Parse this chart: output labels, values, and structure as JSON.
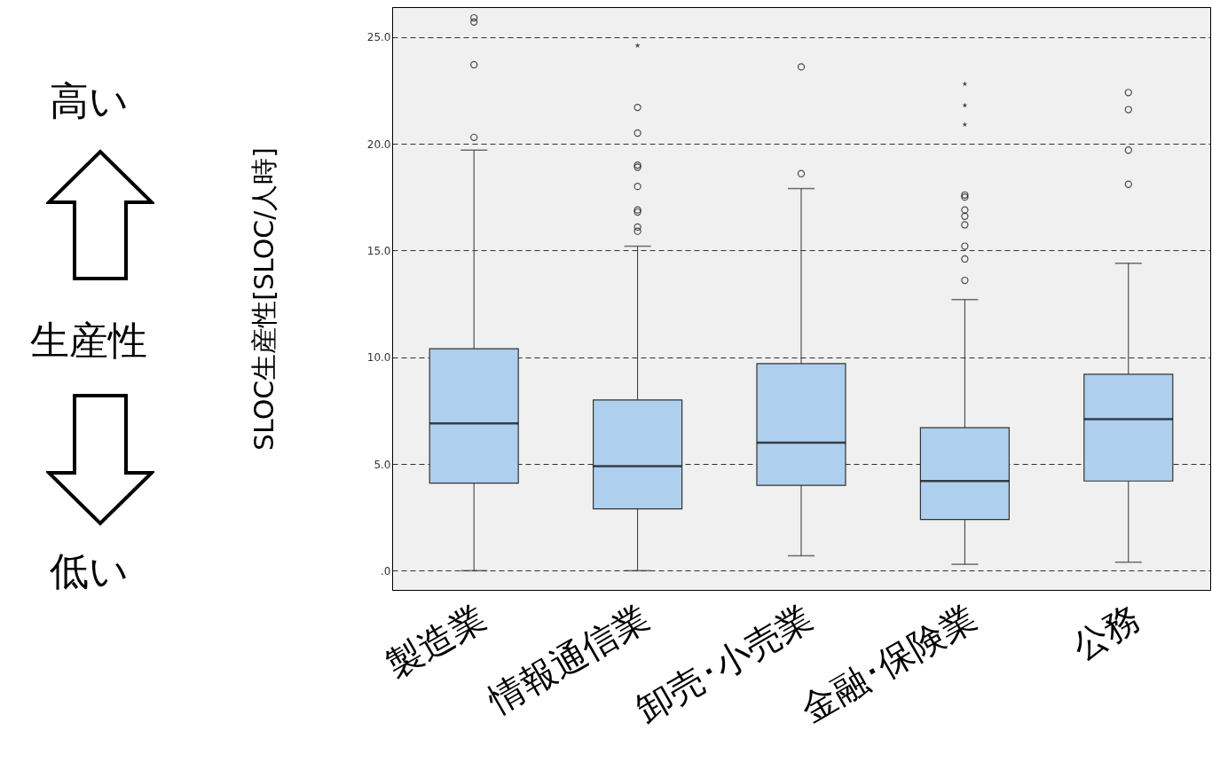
{
  "chart_data": {
    "type": "box",
    "ylabel": "SLOC生産性[SLOC/人時]",
    "categories": [
      "製造業",
      "情報通信業",
      "卸売･小売業",
      "金融･保険業",
      "公務"
    ],
    "color": "#aecfee",
    "boxes": [
      {
        "low": 0,
        "q1": 4.1,
        "median": 6.9,
        "q3": 10.4,
        "high": 19.7,
        "outliers": [
          20.3,
          23.7,
          25.7,
          25.9
        ]
      },
      {
        "low": 0,
        "q1": 2.9,
        "median": 4.9,
        "q3": 8.0,
        "high": 15.2,
        "outliers": [
          15.9,
          16.1,
          16.8,
          16.9,
          18.0,
          18.9,
          19.0,
          20.5,
          21.7
        ]
      },
      {
        "low": 0.7,
        "q1": 4.0,
        "median": 6.0,
        "q3": 9.7,
        "high": 17.9,
        "outliers": [
          18.6,
          23.6
        ]
      },
      {
        "low": 0.3,
        "q1": 2.4,
        "median": 4.2,
        "q3": 6.7,
        "high": 12.7,
        "outliers": [
          13.6,
          14.6,
          15.2,
          16.2,
          16.6,
          16.9,
          17.5,
          17.6
        ]
      },
      {
        "low": 0.4,
        "q1": 4.2,
        "median": 7.1,
        "q3": 9.2,
        "high": 14.4,
        "outliers": [
          18.1,
          19.7,
          21.6,
          22.4
        ]
      }
    ],
    "series": [
      {
        "type": "scatter",
        "marker": "star",
        "color": "#000000",
        "x": [
          "情報通信業",
          "金融･保険業",
          "金融･保険業",
          "金融･保険業"
        ],
        "values": [
          24.6,
          20.9,
          21.8,
          22.8
        ]
      }
    ],
    "ylim": [
      -0.9,
      26.4
    ],
    "yticks": [
      {
        "value": 0,
        "label": ".0"
      },
      {
        "value": 5,
        "label": "5.0"
      },
      {
        "value": 10,
        "label": "10.0"
      },
      {
        "value": 15,
        "label": "15.0"
      },
      {
        "value": 20,
        "label": "20.0"
      },
      {
        "value": 25,
        "label": "25.0"
      }
    ],
    "grid": "y",
    "line_style": "dashed",
    "annotations": [
      "高い",
      "生産性",
      "低い"
    ]
  }
}
